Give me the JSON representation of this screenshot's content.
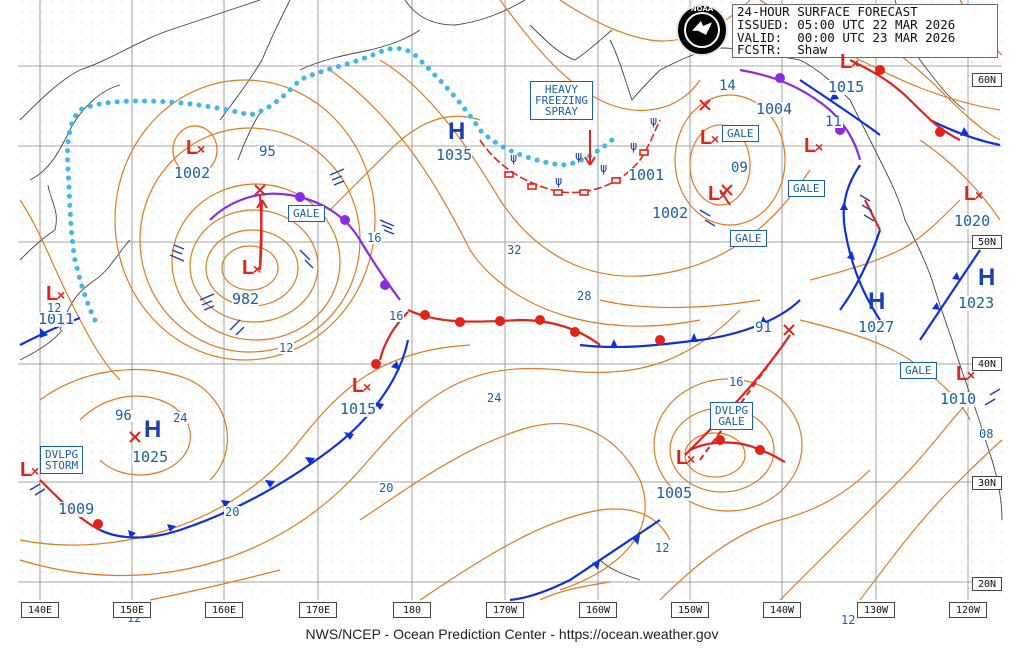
{
  "header": {
    "line1": "24-HOUR SURFACE FORECAST",
    "line2": "ISSUED: 05:00 UTC 22 MAR 2026",
    "line3": "VALID:  00:00 UTC 23 MAR 2026",
    "line4": "FCSTR:  Shaw"
  },
  "logo": {
    "text": "NOAA"
  },
  "credit": "NWS/NCEP - Ocean Prediction Center - https://ocean.weather.gov",
  "longitudes": [
    "140E",
    "150E",
    "160E",
    "170E",
    "180",
    "170W",
    "160W",
    "150W",
    "140W",
    "130W",
    "120W"
  ],
  "latitudes": [
    "60N",
    "50N",
    "40N",
    "30N",
    "20N"
  ],
  "highs": [
    {
      "label": "H",
      "pressure": "1035"
    },
    {
      "label": "H",
      "pressure": "1025"
    },
    {
      "label": "H",
      "pressure": "1027"
    },
    {
      "label": "H",
      "pressure": "1023"
    }
  ],
  "lows": [
    {
      "label": "L",
      "pressure": "1002"
    },
    {
      "label": "L",
      "pressure": "982"
    },
    {
      "label": "L",
      "pressure": "1011"
    },
    {
      "label": "L",
      "pressure": "1015"
    },
    {
      "label": "L",
      "pressure": "1009"
    },
    {
      "label": "L",
      "pressure": "1001"
    },
    {
      "label": "L",
      "pressure": "1002"
    },
    {
      "label": "L",
      "pressure": "1004"
    },
    {
      "label": "L",
      "pressure": "1015"
    },
    {
      "label": "L",
      "pressure": "1020"
    },
    {
      "label": "L",
      "pressure": "1010"
    },
    {
      "label": "L",
      "pressure": "1005"
    }
  ],
  "warnings": {
    "heavy_freezing_spray": "HEAVY\nFREEZING\nSPRAY",
    "gale": "GALE",
    "dvlpg_storm": "DVLPG\nSTORM",
    "dvlpg_gale": "DVLPG\nGALE"
  },
  "isobar_labels": [
    "95",
    "16",
    "32",
    "28",
    "24",
    "20",
    "12",
    "16",
    "12",
    "14",
    "09",
    "11",
    "91",
    "16",
    "96",
    "24",
    "12",
    "08",
    "20",
    "12"
  ],
  "colors": {
    "isobar": "#e07a1f",
    "cold_front": "#1030d8",
    "warm_front": "#e0231b",
    "occluded": "#8a2be2",
    "ice_edge": "#3fb8e8",
    "coast": "#444444",
    "grid": "#8a8a8a"
  }
}
